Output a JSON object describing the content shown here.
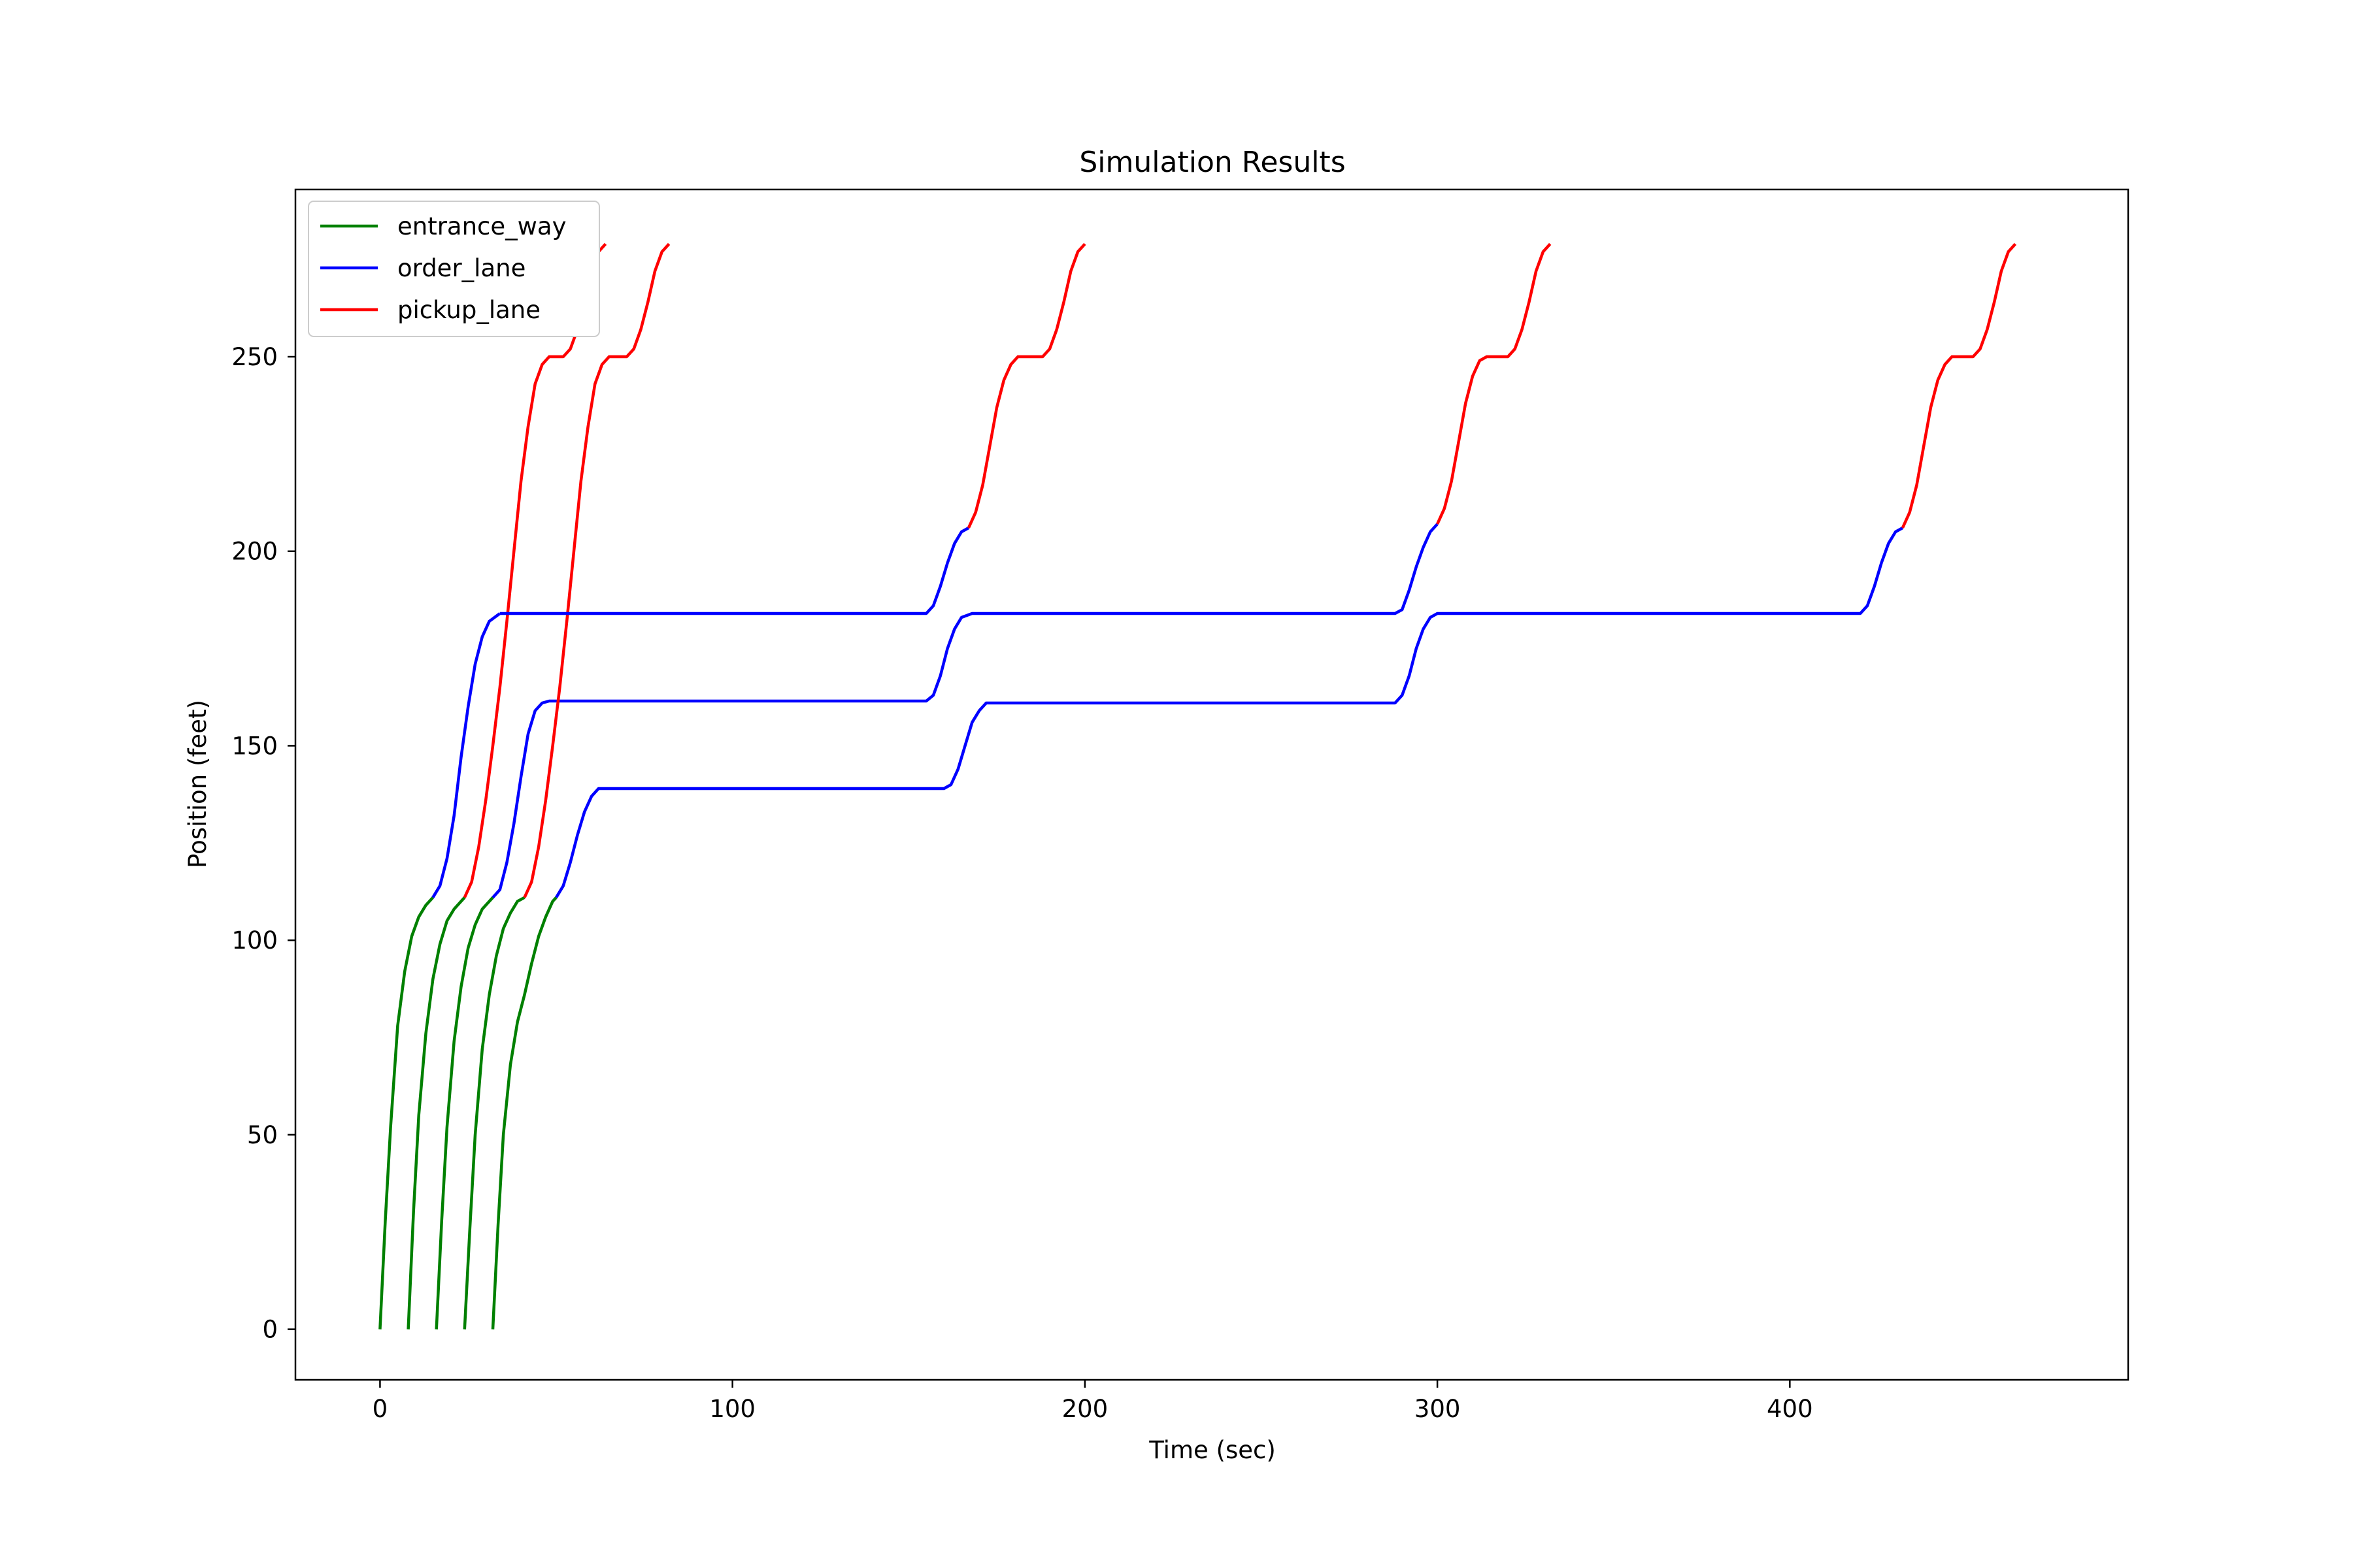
{
  "chart_data": {
    "type": "line",
    "title": "Simulation Results",
    "xlabel": "Time (sec)",
    "ylabel": "Position (feet)",
    "xlim": [
      -24,
      496
    ],
    "ylim": [
      -13,
      293
    ],
    "xticks": [
      0,
      100,
      200,
      300,
      400
    ],
    "yticks": [
      0,
      50,
      100,
      150,
      200,
      250
    ],
    "grid": false,
    "legend_position": "top-left",
    "legend": [
      {
        "name": "entrance_way",
        "color": "#008000"
      },
      {
        "name": "order_lane",
        "color": "#0000ff"
      },
      {
        "name": "pickup_lane",
        "color": "#ff0000"
      }
    ],
    "cars": [
      {
        "entrance_way": [
          [
            0,
            0
          ],
          [
            1.5,
            28
          ],
          [
            3,
            52
          ],
          [
            5,
            78
          ],
          [
            7,
            92
          ],
          [
            9,
            101
          ],
          [
            11,
            106
          ],
          [
            13,
            109
          ],
          [
            15,
            111
          ]
        ],
        "order_lane": [
          [
            15,
            111
          ],
          [
            17,
            114
          ],
          [
            19,
            121
          ],
          [
            21,
            132
          ],
          [
            23,
            147
          ],
          [
            25,
            160
          ],
          [
            27,
            171
          ],
          [
            29,
            178
          ],
          [
            31,
            182
          ],
          [
            34,
            184
          ]
        ],
        "pickup_lane": null
      },
      {
        "entrance_way": [
          [
            8,
            0
          ],
          [
            9.5,
            30
          ],
          [
            11,
            55
          ],
          [
            13,
            76
          ],
          [
            15,
            90
          ],
          [
            17,
            99
          ],
          [
            19,
            105
          ],
          [
            21,
            108
          ],
          [
            23,
            110
          ],
          [
            24,
            111
          ]
        ],
        "order_lane": null,
        "pickup_lane": [
          [
            24,
            111
          ],
          [
            26,
            115
          ],
          [
            28,
            124
          ],
          [
            30,
            136
          ],
          [
            32,
            150
          ],
          [
            34,
            165
          ],
          [
            36,
            182
          ],
          [
            38,
            200
          ],
          [
            40,
            218
          ],
          [
            42,
            232
          ],
          [
            44,
            243
          ],
          [
            46,
            248
          ],
          [
            48,
            250
          ],
          [
            52,
            250
          ],
          [
            54,
            252
          ],
          [
            56,
            257
          ],
          [
            58,
            264
          ],
          [
            60,
            272
          ],
          [
            62,
            277
          ],
          [
            64,
            279
          ]
        ]
      },
      {
        "entrance_way": [
          [
            16,
            0
          ],
          [
            17.5,
            28
          ],
          [
            19,
            52
          ],
          [
            21,
            74
          ],
          [
            23,
            88
          ],
          [
            25,
            98
          ],
          [
            27,
            104
          ],
          [
            29,
            108
          ],
          [
            31,
            110
          ],
          [
            32,
            111
          ]
        ],
        "order_lane": [
          [
            32,
            111
          ],
          [
            34,
            113
          ],
          [
            36,
            120
          ],
          [
            38,
            130
          ],
          [
            40,
            142
          ],
          [
            42,
            153
          ],
          [
            44,
            159
          ],
          [
            46,
            161
          ],
          [
            48,
            161.5
          ],
          [
            50,
            161.5
          ],
          [
            60,
            161.5
          ],
          [
            70,
            161.5
          ],
          [
            80,
            161.5
          ],
          [
            90,
            161.5
          ],
          [
            100,
            161.5
          ],
          [
            110,
            161.5
          ],
          [
            120,
            161.5
          ],
          [
            130,
            161.5
          ],
          [
            140,
            161.5
          ],
          [
            150,
            161.5
          ],
          [
            155,
            161.5
          ],
          [
            157,
            163
          ],
          [
            159,
            168
          ],
          [
            161,
            175
          ],
          [
            163,
            180
          ],
          [
            165,
            183
          ],
          [
            168,
            184
          ],
          [
            180,
            184
          ],
          [
            200,
            184
          ],
          [
            220,
            184
          ],
          [
            240,
            184
          ],
          [
            260,
            184
          ],
          [
            280,
            184
          ],
          [
            288,
            184
          ],
          [
            290,
            185
          ],
          [
            292,
            190
          ],
          [
            294,
            196
          ],
          [
            296,
            201
          ],
          [
            298,
            205
          ],
          [
            300,
            207
          ]
        ],
        "pickup_lane": [
          [
            300,
            207
          ],
          [
            302,
            211
          ],
          [
            304,
            218
          ],
          [
            306,
            228
          ],
          [
            308,
            238
          ],
          [
            310,
            245
          ],
          [
            312,
            249
          ],
          [
            314,
            250
          ],
          [
            317,
            250
          ],
          [
            320,
            250
          ],
          [
            322,
            252
          ],
          [
            324,
            257
          ],
          [
            326,
            264
          ],
          [
            328,
            272
          ],
          [
            330,
            277
          ],
          [
            332,
            279
          ]
        ]
      },
      {
        "entrance_way": [
          [
            24,
            0
          ],
          [
            25.5,
            26
          ],
          [
            27,
            50
          ],
          [
            29,
            72
          ],
          [
            31,
            86
          ],
          [
            33,
            96
          ],
          [
            35,
            103
          ],
          [
            37,
            107
          ],
          [
            39,
            110
          ],
          [
            41,
            111
          ]
        ],
        "order_lane": null,
        "pickup_lane": [
          [
            41,
            111
          ],
          [
            43,
            115
          ],
          [
            45,
            124
          ],
          [
            47,
            136
          ],
          [
            49,
            150
          ],
          [
            51,
            165
          ],
          [
            53,
            182
          ],
          [
            55,
            200
          ],
          [
            57,
            218
          ],
          [
            59,
            232
          ],
          [
            61,
            243
          ],
          [
            63,
            248
          ],
          [
            65,
            250
          ],
          [
            70,
            250
          ],
          [
            72,
            252
          ],
          [
            74,
            257
          ],
          [
            76,
            264
          ],
          [
            78,
            272
          ],
          [
            80,
            277
          ],
          [
            82,
            279
          ]
        ]
      },
      {
        "entrance_way": [
          [
            32,
            0
          ],
          [
            33.5,
            27
          ],
          [
            35,
            50
          ],
          [
            37,
            68
          ],
          [
            39,
            79
          ],
          [
            41,
            86
          ],
          [
            43,
            94
          ],
          [
            45,
            101
          ],
          [
            47,
            106
          ],
          [
            49,
            110
          ],
          [
            50,
            111
          ]
        ],
        "order_lane": [
          [
            50,
            111
          ],
          [
            52,
            114
          ],
          [
            54,
            120
          ],
          [
            56,
            127
          ],
          [
            58,
            133
          ],
          [
            60,
            137
          ],
          [
            62,
            139
          ],
          [
            64,
            139
          ],
          [
            80,
            139
          ],
          [
            100,
            139
          ],
          [
            120,
            139
          ],
          [
            140,
            139
          ],
          [
            160,
            139
          ],
          [
            162,
            140
          ],
          [
            164,
            144
          ],
          [
            166,
            150
          ],
          [
            168,
            156
          ],
          [
            170,
            159
          ],
          [
            172,
            161
          ],
          [
            180,
            161
          ],
          [
            200,
            161
          ],
          [
            220,
            161
          ],
          [
            240,
            161
          ],
          [
            260,
            161
          ],
          [
            280,
            161
          ],
          [
            288,
            161
          ],
          [
            290,
            163
          ],
          [
            292,
            168
          ],
          [
            294,
            175
          ],
          [
            296,
            180
          ],
          [
            298,
            183
          ],
          [
            300,
            184
          ],
          [
            320,
            184
          ],
          [
            340,
            184
          ],
          [
            360,
            184
          ],
          [
            380,
            184
          ],
          [
            400,
            184
          ],
          [
            420,
            184
          ],
          [
            422,
            186
          ],
          [
            424,
            191
          ],
          [
            426,
            197
          ],
          [
            428,
            202
          ],
          [
            430,
            205
          ],
          [
            432,
            206
          ]
        ],
        "pickup_lane": [
          [
            432,
            206
          ],
          [
            434,
            210
          ],
          [
            436,
            217
          ],
          [
            438,
            227
          ],
          [
            440,
            237
          ],
          [
            442,
            244
          ],
          [
            444,
            248
          ],
          [
            446,
            250
          ],
          [
            450,
            250
          ],
          [
            452,
            250
          ],
          [
            454,
            252
          ],
          [
            456,
            257
          ],
          [
            458,
            264
          ],
          [
            460,
            272
          ],
          [
            462,
            277
          ],
          [
            464,
            279
          ]
        ]
      },
      {
        "entrance_way": null,
        "order_lane": [
          [
            34,
            184
          ],
          [
            40,
            184
          ],
          [
            60,
            184
          ],
          [
            80,
            184
          ],
          [
            100,
            184
          ],
          [
            120,
            184
          ],
          [
            140,
            184
          ],
          [
            150,
            184
          ],
          [
            155,
            184
          ],
          [
            157,
            186
          ],
          [
            159,
            191
          ],
          [
            161,
            197
          ],
          [
            163,
            202
          ],
          [
            165,
            205
          ],
          [
            167,
            206
          ]
        ],
        "pickup_lane": [
          [
            167,
            206
          ],
          [
            169,
            210
          ],
          [
            171,
            217
          ],
          [
            173,
            227
          ],
          [
            175,
            237
          ],
          [
            177,
            244
          ],
          [
            179,
            248
          ],
          [
            181,
            250
          ],
          [
            185,
            250
          ],
          [
            188,
            250
          ],
          [
            190,
            252
          ],
          [
            192,
            257
          ],
          [
            194,
            264
          ],
          [
            196,
            272
          ],
          [
            198,
            277
          ],
          [
            200,
            279
          ]
        ]
      }
    ]
  }
}
